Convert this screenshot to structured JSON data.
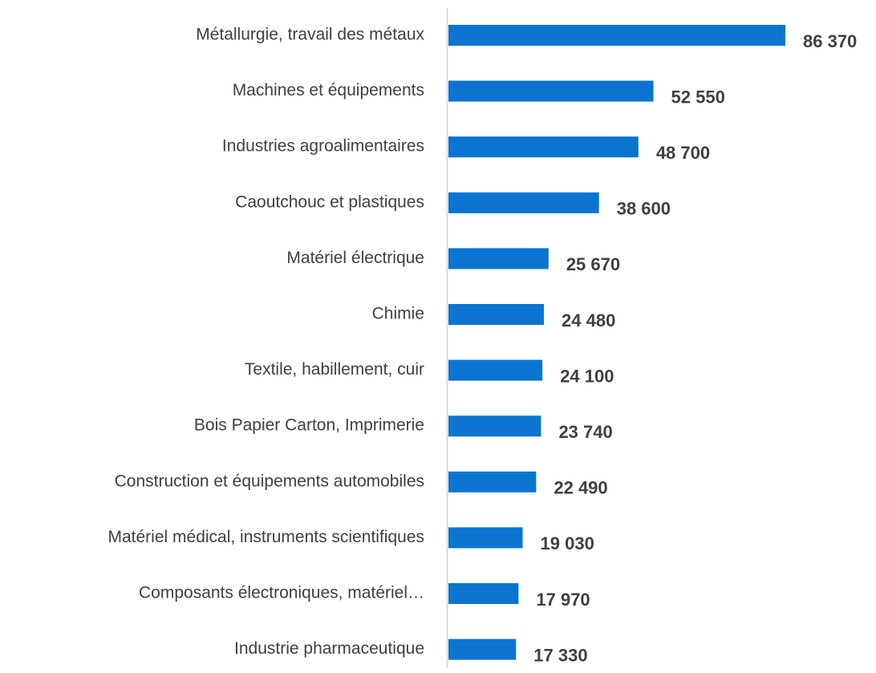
{
  "chart_data": {
    "type": "bar",
    "orientation": "horizontal",
    "color": "#0b74d1",
    "categories": [
      "Métallurgie, travail des métaux",
      "Machines et équipements",
      "Industries agroalimentaires",
      "Caoutchouc et plastiques",
      "Matériel électrique",
      "Chimie",
      "Textile, habillement, cuir",
      "Bois Papier Carton, Imprimerie",
      "Construction et équipements automobiles",
      "Matériel médical, instruments scientifiques",
      "Composants électroniques, matériel…",
      "Industrie pharmaceutique"
    ],
    "values": [
      86370,
      52550,
      48700,
      38600,
      25670,
      24480,
      24100,
      23740,
      22490,
      19030,
      17970,
      17330
    ],
    "value_labels": [
      "86 370",
      "52 550",
      "48 700",
      "38 600",
      "25 670",
      "24 480",
      "24 100",
      "23 740",
      "22 490",
      "19 030",
      "17 970",
      "17 330"
    ]
  }
}
